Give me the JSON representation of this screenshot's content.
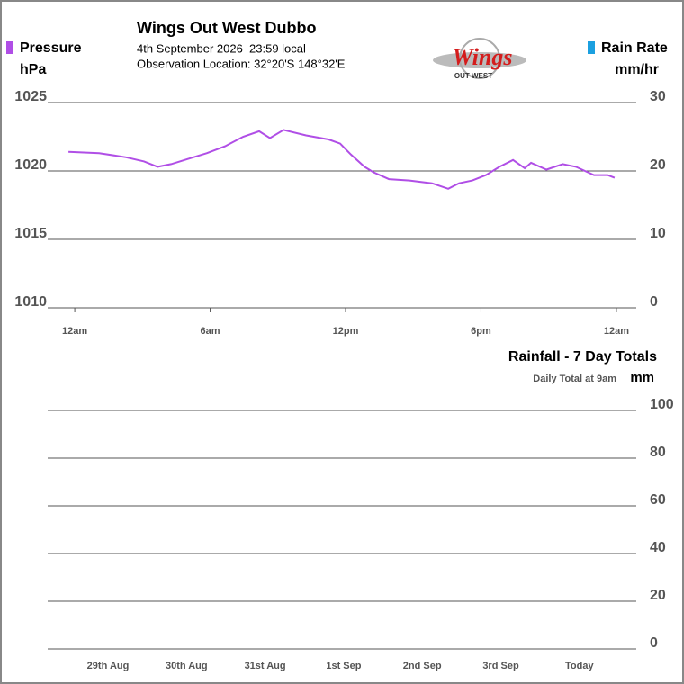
{
  "chart_data": [
    {
      "type": "line",
      "title": "Wings Out West Dubbo",
      "subtitle": "4th September 2026  23:59 local",
      "annotation": "Observation Location: 32°20'S 148°32'E",
      "y_label": "hPa",
      "y2_label": "mm/hr",
      "x": [
        -0.28,
        1.08,
        2.27,
        3.07,
        3.67,
        4.27,
        5.06,
        5.86,
        6.66,
        7.46,
        8.17,
        8.65,
        9.25,
        10.25,
        11.25,
        11.76,
        12.24,
        12.84,
        13.24,
        13.92,
        14.83,
        15.83,
        16.55,
        17.03,
        17.62,
        18.22,
        18.82,
        19.42,
        19.94,
        20.22,
        20.9,
        21.62,
        22.21,
        23.01,
        23.61,
        23.92
      ],
      "series": [
        {
          "name": "Pressure",
          "color": "#b04ee6",
          "axis": "y",
          "values": [
            1021.4,
            1021.3,
            1021.0,
            1020.7,
            1020.3,
            1020.5,
            1020.9,
            1021.3,
            1021.8,
            1022.5,
            1022.9,
            1022.4,
            1023.0,
            1022.6,
            1022.3,
            1022.0,
            1021.2,
            1020.3,
            1019.9,
            1019.4,
            1019.3,
            1019.1,
            1018.7,
            1019.1,
            1019.3,
            1019.7,
            1020.3,
            1020.8,
            1020.2,
            1020.6,
            1020.1,
            1020.5,
            1020.3,
            1019.7,
            1019.7,
            1019.5
          ]
        },
        {
          "name": "Rain Rate",
          "color": "#1ba0e0",
          "axis": "y2",
          "values": [
            null,
            null,
            null,
            null,
            null,
            null,
            null,
            null,
            null,
            null,
            null,
            null,
            null,
            null,
            null,
            null,
            null,
            null,
            null,
            null,
            null,
            null,
            null,
            null,
            null,
            null,
            null,
            null,
            null,
            null,
            null,
            null,
            null,
            null,
            null,
            null
          ]
        }
      ],
      "xlim": [
        -1.2,
        24.88
      ],
      "xticks": [
        {
          "value": 0,
          "label": "12am"
        },
        {
          "value": 6,
          "label": "6am"
        },
        {
          "value": 12,
          "label": "12pm"
        },
        {
          "value": 18,
          "label": "6pm"
        },
        {
          "value": 24,
          "label": "12am"
        }
      ],
      "ylim": [
        1010,
        1025
      ],
      "yticks": [
        1010,
        1015,
        1020,
        1025
      ],
      "y2lim": [
        0,
        30
      ],
      "y2ticks": [
        0,
        10,
        20,
        30
      ],
      "grid": true
    },
    {
      "type": "bar",
      "title": "Rainfall - 7 Day Totals",
      "subtitle": "Daily Total at 9am",
      "y_label": "mm",
      "categories": [
        "29th Aug",
        "30th Aug",
        "31st Aug",
        "1st Sep",
        "2nd Sep",
        "3rd Sep",
        "Today"
      ],
      "values": [
        0,
        0,
        0,
        0,
        0,
        0,
        0
      ],
      "ylim": [
        0,
        100
      ],
      "yticks": [
        0,
        20,
        40,
        60,
        80,
        100
      ],
      "grid": true
    }
  ],
  "logo": {
    "text": "Wings",
    "subtext": "OUT WEST"
  }
}
